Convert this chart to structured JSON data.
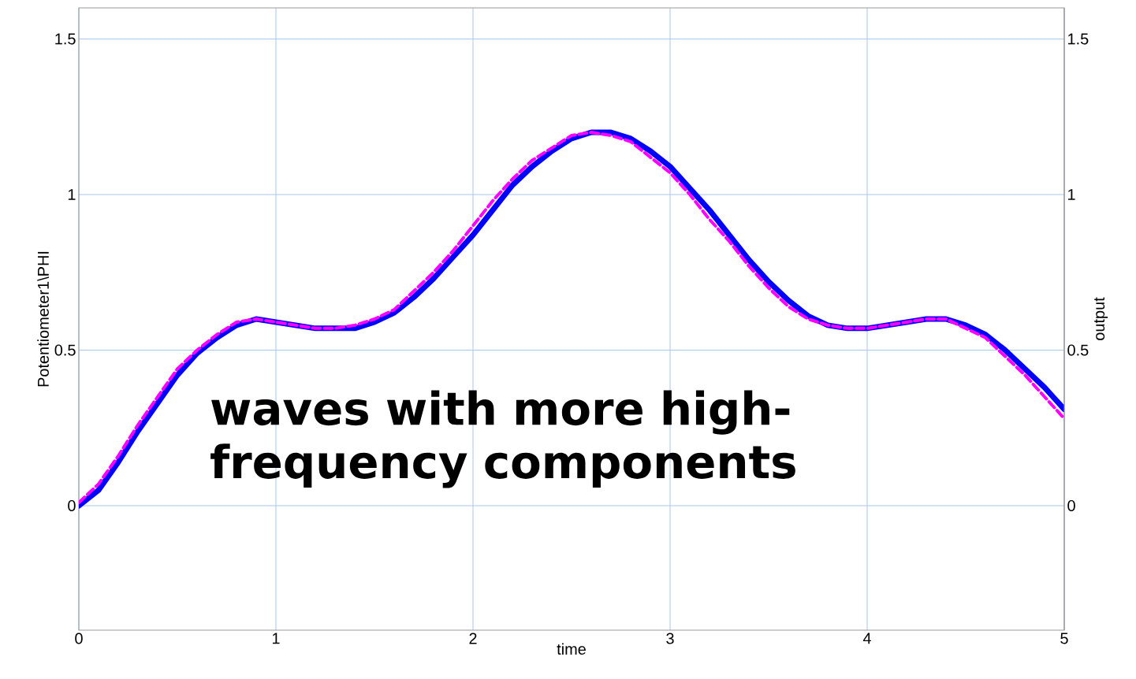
{
  "chart_data": {
    "type": "line",
    "xlabel": "time",
    "ylabel": "Potentiometer1\\PHI",
    "y2label": "output",
    "annotations": [
      "waves with more high-frequency components"
    ],
    "x": [
      0,
      0.1,
      0.2,
      0.3,
      0.4,
      0.5,
      0.6,
      0.7,
      0.8,
      0.9,
      1.0,
      1.1,
      1.2,
      1.3,
      1.4,
      1.5,
      1.6,
      1.7,
      1.8,
      1.9,
      2.0,
      2.1,
      2.2,
      2.3,
      2.4,
      2.5,
      2.6,
      2.7,
      2.8,
      2.9,
      3.0,
      3.1,
      3.2,
      3.3,
      3.4,
      3.5,
      3.6,
      3.7,
      3.8,
      3.9,
      4.0,
      4.1,
      4.2,
      4.3,
      4.4,
      4.5,
      4.6,
      4.7,
      4.8,
      4.9,
      5.0
    ],
    "series": [
      {
        "color": "#0000ff",
        "line_style": "solid",
        "values": [
          0,
          0.05,
          0.14,
          0.24,
          0.33,
          0.42,
          0.49,
          0.54,
          0.58,
          0.6,
          0.59,
          0.58,
          0.57,
          0.57,
          0.57,
          0.59,
          0.62,
          0.67,
          0.73,
          0.8,
          0.87,
          0.95,
          1.03,
          1.09,
          1.14,
          1.18,
          1.2,
          1.2,
          1.18,
          1.14,
          1.09,
          1.02,
          0.95,
          0.87,
          0.79,
          0.72,
          0.66,
          0.61,
          0.58,
          0.57,
          0.57,
          0.58,
          0.59,
          0.6,
          0.6,
          0.58,
          0.55,
          0.5,
          0.44,
          0.38,
          0.31
        ]
      },
      {
        "color": "#ff00ff",
        "line_style": "dashed",
        "axis": "y2",
        "values": [
          0.01,
          0.07,
          0.16,
          0.26,
          0.35,
          0.44,
          0.5,
          0.55,
          0.59,
          0.6,
          0.59,
          0.58,
          0.57,
          0.57,
          0.58,
          0.6,
          0.63,
          0.69,
          0.75,
          0.82,
          0.9,
          0.98,
          1.05,
          1.11,
          1.15,
          1.19,
          1.2,
          1.19,
          1.17,
          1.12,
          1.07,
          1.0,
          0.92,
          0.85,
          0.77,
          0.7,
          0.64,
          0.6,
          0.58,
          0.57,
          0.57,
          0.58,
          0.59,
          0.6,
          0.6,
          0.57,
          0.54,
          0.48,
          0.42,
          0.35,
          0.28
        ]
      }
    ],
    "xlim": [
      0,
      5
    ],
    "ylim": [
      -0.4,
      1.6
    ],
    "y2lim": [
      -0.4,
      1.6
    ],
    "xticks": [
      0,
      1,
      2,
      3,
      4,
      5
    ],
    "yticks": [
      0,
      0.5,
      1,
      1.5
    ],
    "y2ticks": [
      0,
      0.5,
      1,
      1.5
    ],
    "grid": true
  }
}
